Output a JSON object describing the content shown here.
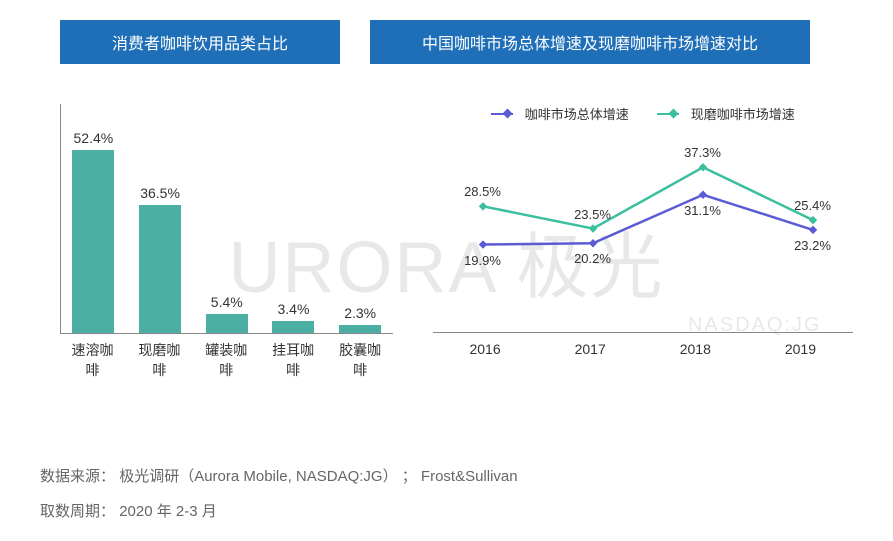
{
  "watermark": {
    "main": "URORA 极光",
    "sub": "NASDAQ:JG"
  },
  "left_chart": {
    "title": "消费者咖啡饮用品类占比",
    "type": "bar",
    "bar_color": "#4bb0a3",
    "axis_color": "#888888",
    "label_fontsize": 14,
    "ylim": [
      0,
      60
    ],
    "categories": [
      "速溶咖啡",
      "现磨咖啡",
      "罐装咖啡",
      "挂耳咖啡",
      "胶囊咖啡"
    ],
    "values": [
      52.4,
      36.5,
      5.4,
      3.4,
      2.3
    ],
    "value_labels": [
      "52.4%",
      "36.5%",
      "5.4%",
      "3.4%",
      "2.3%"
    ]
  },
  "right_chart": {
    "title": "中国咖啡市场总体增速及现磨咖啡市场增速对比",
    "type": "line",
    "ylim": [
      0,
      45
    ],
    "x_labels": [
      "2016",
      "2017",
      "2018",
      "2019"
    ],
    "series": [
      {
        "name": "咖啡市场总体增速",
        "color": "#5b5bd6",
        "values": [
          19.9,
          20.2,
          31.1,
          23.2
        ],
        "labels": [
          "19.9%",
          "20.2%",
          "31.1%",
          "23.2%"
        ],
        "label_pos": [
          "below",
          "below",
          "below",
          "below"
        ]
      },
      {
        "name": "现磨咖啡市场增速",
        "color": "#3bbfa0",
        "values": [
          28.5,
          23.5,
          37.3,
          25.4
        ],
        "labels": [
          "28.5%",
          "23.5%",
          "37.3%",
          "25.4%"
        ],
        "label_pos": [
          "above",
          "above",
          "above",
          "above"
        ]
      }
    ],
    "line_width": 2.5,
    "marker_size": 6
  },
  "footer": {
    "source_label": "数据来源：",
    "source_text": "极光调研（Aurora Mobile, NASDAQ:JG） ； Frost&Sullivan",
    "period_label": "取数周期：",
    "period_text": "2020 年 2-3 月"
  }
}
